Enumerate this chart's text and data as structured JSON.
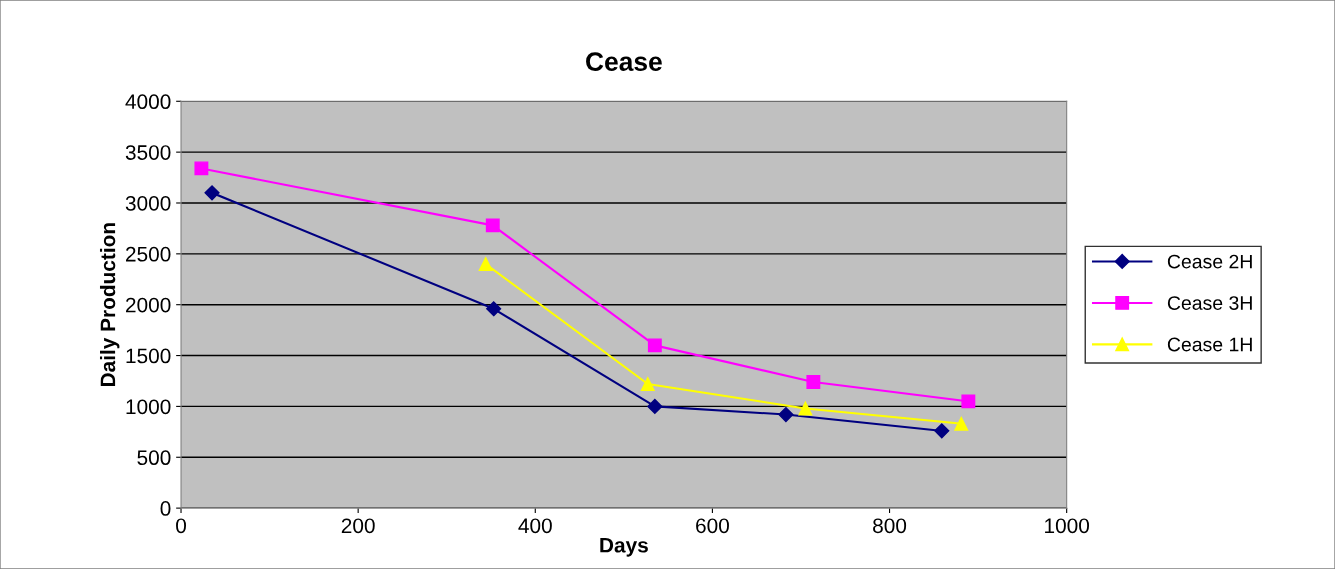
{
  "chart_data": {
    "type": "line",
    "title": "Cease",
    "xlabel": "Days",
    "ylabel": "Daily Production",
    "xlim": [
      0,
      1000
    ],
    "xticks": [
      0,
      200,
      400,
      600,
      800,
      1000
    ],
    "ylim": [
      0,
      4000
    ],
    "yticks": [
      0,
      500,
      1000,
      1500,
      2000,
      2500,
      3000,
      3500,
      4000
    ],
    "grid": "y",
    "legend": "right",
    "series": [
      {
        "name": "Cease 2H",
        "color": "#000080",
        "marker": "diamond",
        "x": [
          35,
          353,
          535,
          683,
          859
        ],
        "values": [
          3100,
          1960,
          1000,
          920,
          760
        ]
      },
      {
        "name": "Cease 3H",
        "color": "#ff00ff",
        "marker": "square",
        "x": [
          23,
          352,
          535,
          714,
          889
        ],
        "values": [
          3340,
          2780,
          1600,
          1240,
          1050
        ]
      },
      {
        "name": "Cease 1H",
        "color": "#ffff00",
        "marker": "triangle",
        "x": [
          344,
          527,
          705,
          881
        ],
        "values": [
          2400,
          1220,
          980,
          830
        ]
      }
    ]
  }
}
